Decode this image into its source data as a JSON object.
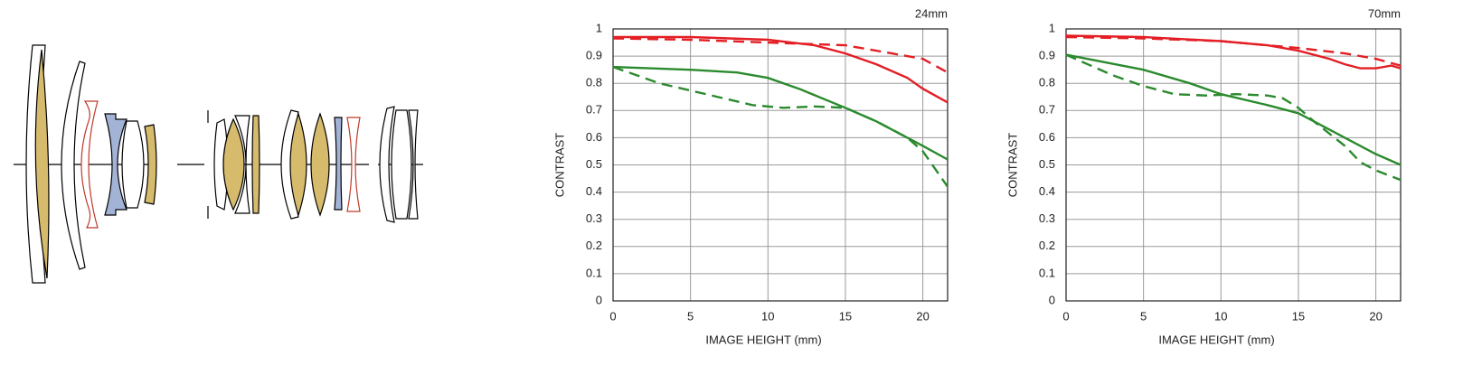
{
  "chart_data": [
    {
      "type": "line",
      "title": "24mm",
      "y_label": "CONTRAST",
      "x_label": "IMAGE HEIGHT (mm)",
      "xlim": [
        0,
        21.6
      ],
      "xticks": [
        0,
        5,
        10,
        15,
        20
      ],
      "ylim": [
        0,
        1
      ],
      "yticks": [
        0,
        0.1,
        0.2,
        0.3,
        0.4,
        0.5,
        0.6,
        0.7,
        0.8,
        0.9,
        1
      ],
      "grid": true,
      "series": [
        {
          "color": "#e31e24",
          "dashed": false,
          "x": [
            0,
            5,
            10,
            13,
            15,
            17,
            19,
            20,
            21.6
          ],
          "values": [
            0.97,
            0.97,
            0.96,
            0.94,
            0.91,
            0.87,
            0.82,
            0.78,
            0.73
          ]
        },
        {
          "color": "#e31e24",
          "dashed": true,
          "x": [
            0,
            5,
            10,
            15,
            18,
            20,
            21.6
          ],
          "values": [
            0.965,
            0.96,
            0.95,
            0.94,
            0.91,
            0.89,
            0.84
          ]
        },
        {
          "color": "#2b8a2e",
          "dashed": false,
          "x": [
            0,
            5,
            8,
            10,
            12,
            15,
            17,
            19,
            20,
            21.6
          ],
          "values": [
            0.86,
            0.85,
            0.84,
            0.82,
            0.78,
            0.71,
            0.66,
            0.6,
            0.57,
            0.52
          ]
        },
        {
          "color": "#2b8a2e",
          "dashed": true,
          "x": [
            0,
            3,
            6,
            9,
            11,
            13,
            15,
            17,
            19,
            20,
            21.6
          ],
          "values": [
            0.86,
            0.8,
            0.76,
            0.72,
            0.71,
            0.715,
            0.71,
            0.66,
            0.6,
            0.55,
            0.42
          ]
        }
      ]
    },
    {
      "type": "line",
      "title": "70mm",
      "y_label": "CONTRAST",
      "x_label": "IMAGE HEIGHT (mm)",
      "xlim": [
        0,
        21.6
      ],
      "xticks": [
        0,
        5,
        10,
        15,
        20
      ],
      "ylim": [
        0,
        1
      ],
      "yticks": [
        0,
        0.1,
        0.2,
        0.3,
        0.4,
        0.5,
        0.6,
        0.7,
        0.8,
        0.9,
        1
      ],
      "grid": true,
      "series": [
        {
          "color": "#e31e24",
          "dashed": false,
          "x": [
            0,
            5,
            10,
            13,
            15,
            17,
            18,
            19,
            20,
            21,
            21.6
          ],
          "values": [
            0.975,
            0.97,
            0.955,
            0.94,
            0.92,
            0.89,
            0.87,
            0.855,
            0.855,
            0.865,
            0.855
          ]
        },
        {
          "color": "#e31e24",
          "dashed": true,
          "x": [
            0,
            5,
            10,
            15,
            18,
            20,
            21.6
          ],
          "values": [
            0.97,
            0.965,
            0.955,
            0.93,
            0.91,
            0.89,
            0.865
          ]
        },
        {
          "color": "#2b8a2e",
          "dashed": false,
          "x": [
            0,
            5,
            8,
            10,
            13,
            15,
            16,
            18,
            20,
            21.6
          ],
          "values": [
            0.905,
            0.85,
            0.8,
            0.76,
            0.72,
            0.69,
            0.66,
            0.6,
            0.54,
            0.5
          ]
        },
        {
          "color": "#2b8a2e",
          "dashed": true,
          "x": [
            0,
            3,
            5,
            7,
            9,
            11,
            13,
            14,
            15,
            16,
            18,
            19,
            20,
            21.6
          ],
          "values": [
            0.905,
            0.83,
            0.79,
            0.76,
            0.755,
            0.76,
            0.755,
            0.745,
            0.71,
            0.66,
            0.57,
            0.51,
            0.48,
            0.445
          ]
        }
      ]
    }
  ]
}
